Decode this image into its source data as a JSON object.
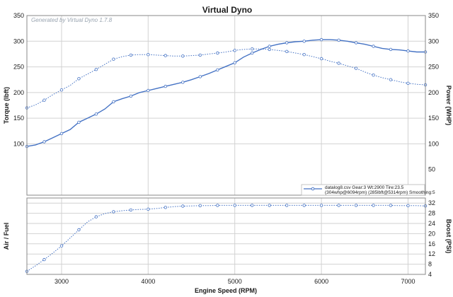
{
  "page": {
    "title": "Virtual Dyno",
    "generated_by": "Generated by Virtual Dyno 1.7.8"
  },
  "chart_data": [
    {
      "type": "line",
      "panel": "top",
      "x": [
        2600,
        2700,
        2800,
        2900,
        3000,
        3100,
        3200,
        3300,
        3400,
        3500,
        3600,
        3700,
        3800,
        3900,
        4000,
        4100,
        4200,
        4300,
        4400,
        4500,
        4600,
        4700,
        4800,
        4900,
        5000,
        5100,
        5200,
        5300,
        5400,
        5500,
        5600,
        5700,
        5800,
        5900,
        6000,
        6100,
        6200,
        6300,
        6400,
        6500,
        6600,
        6700,
        6800,
        6900,
        7000,
        7100,
        7200
      ],
      "xlim": [
        2600,
        7200
      ],
      "xticks": [
        3000,
        4000,
        5000,
        6000,
        7000
      ],
      "xlabel": "Engine Speed (RPM)",
      "ylim": [
        0,
        350
      ],
      "yticks": [
        100,
        150,
        200,
        250,
        300,
        350
      ],
      "ylabel": "Torque (lbft)",
      "y2lim": [
        0,
        350
      ],
      "y2ticks": [
        50,
        100,
        150,
        200,
        250,
        300,
        350
      ],
      "y2label": "Power (WHP)",
      "grid": true,
      "legend_position": "bottom-right",
      "legend_entry": "datalog8.csv Gear:3 Wt:2900 Tire:23.5",
      "legend_detail": "(304whp@6094rpm) (285lbft@5314rpm) Smoothing:5",
      "series": [
        {
          "role": "power",
          "axis": "right",
          "style": "solid",
          "color": "#4472c4",
          "values": [
            95,
            98,
            104,
            112,
            120,
            128,
            142,
            150,
            158,
            168,
            182,
            188,
            193,
            200,
            204,
            208,
            212,
            216,
            220,
            225,
            231,
            237,
            244,
            251,
            258,
            269,
            277,
            284,
            290,
            294,
            297,
            299,
            300,
            302,
            303,
            303,
            302,
            300,
            297,
            294,
            290,
            286,
            284,
            283,
            281,
            279,
            279
          ]
        },
        {
          "role": "torque",
          "axis": "left",
          "style": "dotted",
          "color": "#4472c4",
          "values": [
            170,
            176,
            185,
            196,
            205,
            214,
            227,
            236,
            245,
            255,
            265,
            270,
            273,
            274,
            274,
            273,
            272,
            271,
            271,
            272,
            273,
            275,
            277,
            279,
            282,
            284,
            285,
            285,
            284,
            282,
            280,
            277,
            274,
            270,
            266,
            261,
            257,
            252,
            247,
            240,
            234,
            229,
            225,
            221,
            218,
            216,
            215
          ]
        }
      ]
    },
    {
      "type": "line",
      "panel": "bottom",
      "x": [
        2600,
        2700,
        2800,
        2900,
        3000,
        3100,
        3200,
        3300,
        3400,
        3500,
        3600,
        3700,
        3800,
        3900,
        4000,
        4100,
        4200,
        4300,
        4400,
        4500,
        4600,
        4700,
        4800,
        4900,
        5000,
        5100,
        5200,
        5300,
        5400,
        5500,
        5600,
        5700,
        5800,
        5900,
        6000,
        6100,
        6200,
        6300,
        6400,
        6500,
        6600,
        6700,
        6800,
        6900,
        7000,
        7100,
        7200
      ],
      "xlim": [
        2600,
        7200
      ],
      "xticks": [
        3000,
        4000,
        5000,
        6000,
        7000
      ],
      "xlabel": "Engine Speed (RPM)",
      "ylabel": "Air / Fuel",
      "y2lim": [
        4,
        34
      ],
      "y2ticks": [
        4,
        8,
        12,
        16,
        20,
        24,
        28,
        32
      ],
      "y2label": "Boost (PSI)",
      "grid": true,
      "series": [
        {
          "role": "boost",
          "axis": "right",
          "style": "dotted",
          "color": "#4472c4",
          "values": [
            5.2,
            7.4,
            9.8,
            12.4,
            15.2,
            18.3,
            21.5,
            24.6,
            26.6,
            27.9,
            28.6,
            29.0,
            29.3,
            29.5,
            29.6,
            29.9,
            30.3,
            30.6,
            30.8,
            30.9,
            31.0,
            31.0,
            31.1,
            31.1,
            31.1,
            31.1,
            31.1,
            31.1,
            31.1,
            31.1,
            31.1,
            31.1,
            31.1,
            31.1,
            31.1,
            31.1,
            31.1,
            31.1,
            31.1,
            31.1,
            31.1,
            31.1,
            31.1,
            31.0,
            31.0,
            31.0,
            30.9
          ]
        }
      ]
    }
  ]
}
